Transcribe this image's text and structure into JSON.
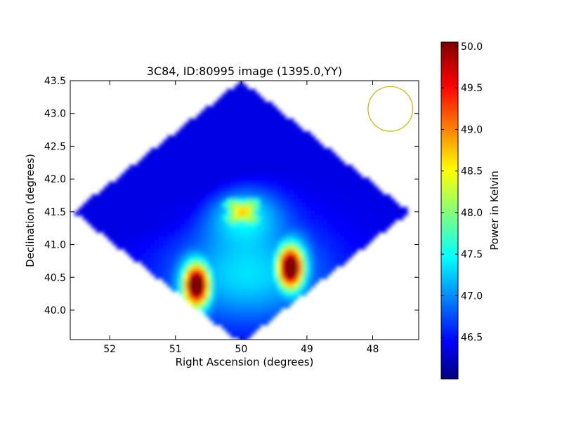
{
  "chart_data": {
    "type": "heatmap",
    "title": "3C84, ID:80995 image (1395.0,YY)",
    "xlabel": "Right Ascension (degrees)",
    "ylabel": "Declination (degrees)",
    "xlim": [
      52.6,
      47.3
    ],
    "ylim": [
      39.55,
      43.5
    ],
    "x_axis_inverted": true,
    "x_ticks": [
      52,
      51,
      50,
      49,
      48
    ],
    "x_tick_labels": [
      "52",
      "51",
      "50",
      "49",
      "48"
    ],
    "y_ticks": [
      40.0,
      40.5,
      41.0,
      41.5,
      42.0,
      42.5,
      43.0,
      43.5
    ],
    "y_tick_labels": [
      "40.0",
      "40.5",
      "41.0",
      "41.5",
      "42.0",
      "42.5",
      "43.0",
      "43.5"
    ],
    "colorbar": {
      "label": "Power in Kelvin",
      "range": [
        46.0,
        50.05
      ],
      "ticks": [
        46.5,
        47.0,
        47.5,
        48.0,
        48.5,
        49.0,
        49.5,
        50.0
      ],
      "tick_labels": [
        "46.5",
        "47.0",
        "47.5",
        "48.0",
        "48.5",
        "49.0",
        "49.5",
        "50.0"
      ],
      "colormap": "jet"
    },
    "footprint": {
      "shape": "diamond",
      "center": [
        50.0,
        41.5
      ],
      "ra_half_width": 2.55,
      "dec_half_height": 2.0
    },
    "background_level": 46.4,
    "features": [
      {
        "label": "central source",
        "ra": 49.98,
        "dec": 41.5,
        "peak": 48.9,
        "shape": "star"
      },
      {
        "label": "lower-left hotspot",
        "ra": 50.68,
        "dec": 40.38,
        "peak": 50.0
      },
      {
        "label": "lower-right hotspot",
        "ra": 49.25,
        "dec": 40.65,
        "peak": 50.0
      },
      {
        "label": "dark depression",
        "ra": 51.0,
        "dec": 41.95,
        "peak": 46.05
      }
    ],
    "beam": {
      "ra": 47.73,
      "dec": 43.07,
      "radius_deg": 0.37,
      "color": "#c8b400"
    }
  }
}
